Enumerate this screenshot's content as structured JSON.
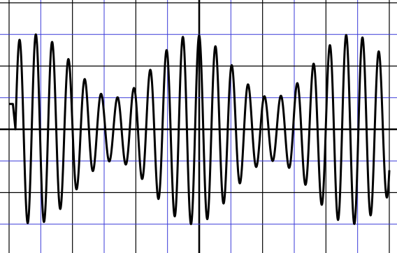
{
  "chart_data": {
    "type": "line",
    "title": "",
    "xlabel": "",
    "ylabel": "",
    "grid": true,
    "grid_divisions": {
      "x": 12,
      "y": 8
    },
    "xlim": [
      0,
      12
    ],
    "ylim": [
      -4,
      4
    ],
    "series": [
      {
        "name": "",
        "amplitude_max": 3.0,
        "amplitude_min": 1.0,
        "modulation_period_div": 5.0,
        "modulation_peak_at_div": 5.8,
        "cycles_per_div": 1.94,
        "start_div": 0.2,
        "end_div": 12.0
      }
    ],
    "colors": {
      "background": "#ffffff",
      "minor_grid": "#3a3ad8",
      "major_grid": "#000000",
      "center_axis": "#000000",
      "trace": "#000000"
    }
  }
}
